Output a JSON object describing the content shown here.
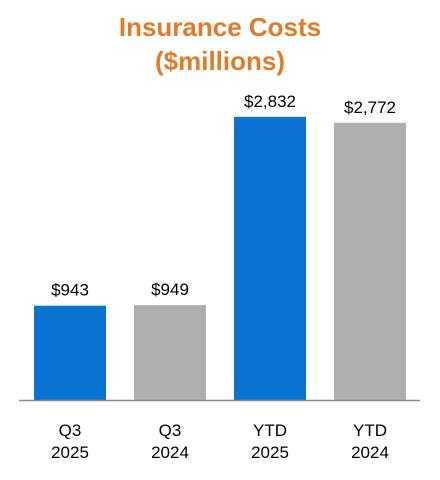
{
  "chart_data": {
    "type": "bar",
    "title": "Insurance Costs",
    "subtitle": "($millions)",
    "categories": [
      [
        "Q3",
        "2025"
      ],
      [
        "Q3",
        "2024"
      ],
      [
        "YTD",
        "2025"
      ],
      [
        "YTD",
        "2024"
      ]
    ],
    "values": [
      943,
      949,
      2832,
      2772
    ],
    "value_labels": [
      "$943",
      "$949",
      "$2,832",
      "$2,772"
    ],
    "bar_colors": [
      "#0A72D1",
      "#AEAEAE",
      "#0A72D1",
      "#AEAEAE"
    ],
    "ylim": [
      0,
      3000
    ],
    "grid": false,
    "xlabel": "",
    "ylabel": ""
  },
  "colors": {
    "title": "#E07B2A",
    "axis": "#8C8C8C",
    "text": "#000000"
  }
}
